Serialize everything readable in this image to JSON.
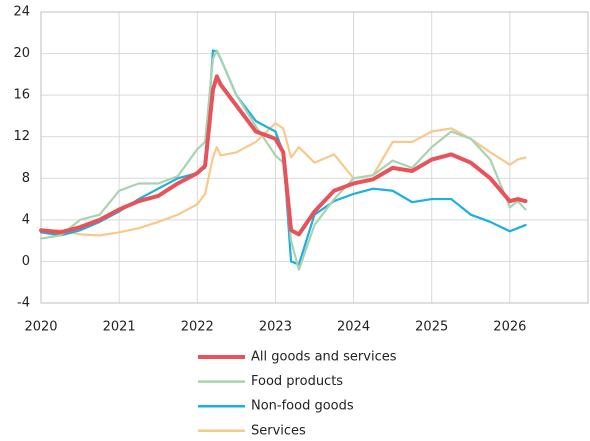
{
  "chart_data": {
    "type": "line",
    "x": [
      2020,
      2020.25,
      2020.5,
      2020.75,
      2021,
      2021.25,
      2021.5,
      2021.75,
      2022,
      2022.1,
      2022.2,
      2022.25,
      2022.3,
      2022.5,
      2022.75,
      2023,
      2023.1,
      2023.2,
      2023.3,
      2023.5,
      2023.75,
      2024,
      2024.25,
      2024.5,
      2024.75,
      2025,
      2025.25,
      2025.5,
      2025.75,
      2026,
      2026.1,
      2026.2
    ],
    "series": [
      {
        "name": "All goods and services",
        "color": "#e8525a",
        "values": [
          3.0,
          2.8,
          3.3,
          4.0,
          5.0,
          5.8,
          6.3,
          7.5,
          8.5,
          9.2,
          16.5,
          17.8,
          17.0,
          15.0,
          12.5,
          11.8,
          10.5,
          3.0,
          2.6,
          4.8,
          6.8,
          7.5,
          7.9,
          9.0,
          8.7,
          9.8,
          10.3,
          9.5,
          8.0,
          5.8,
          6.0,
          5.8
        ]
      },
      {
        "name": "Food products",
        "color": "#a9d3b0",
        "values": [
          2.2,
          2.5,
          4.0,
          4.5,
          6.8,
          7.5,
          7.5,
          8.2,
          10.8,
          11.5,
          19.5,
          20.3,
          19.5,
          16.0,
          13.0,
          10.2,
          9.5,
          2.0,
          -0.8,
          3.5,
          6.0,
          8.0,
          8.3,
          9.7,
          9.0,
          11.0,
          12.5,
          11.8,
          9.8,
          5.2,
          5.8,
          5.0
        ]
      },
      {
        "name": "Non-food goods",
        "color": "#1ab0e0",
        "values": [
          2.8,
          2.5,
          3.0,
          3.8,
          4.8,
          6.0,
          7.0,
          8.0,
          8.5,
          9.0,
          20.3,
          20.2,
          19.5,
          16.0,
          13.5,
          12.5,
          10.5,
          0.0,
          -0.3,
          4.5,
          5.8,
          6.5,
          7.0,
          6.8,
          5.7,
          6.0,
          6.0,
          4.5,
          3.8,
          2.9,
          3.2,
          3.5
        ]
      },
      {
        "name": "Services",
        "color": "#f8c98a",
        "values": [
          3.0,
          3.0,
          2.6,
          2.5,
          2.8,
          3.2,
          3.8,
          4.5,
          5.5,
          6.5,
          10.0,
          11.0,
          10.2,
          10.5,
          11.5,
          13.3,
          12.8,
          10.0,
          11.0,
          9.5,
          10.3,
          8.0,
          8.3,
          11.5,
          11.5,
          12.5,
          12.8,
          11.8,
          10.5,
          9.3,
          9.8,
          10.0
        ]
      }
    ],
    "xlim": [
      2020,
      2027
    ],
    "xticks": [
      2020,
      2021,
      2022,
      2023,
      2024,
      2025,
      2026
    ],
    "ylim": [
      -4,
      24
    ],
    "yticks": [
      -4,
      0,
      4,
      8,
      12,
      16,
      20,
      24
    ],
    "grid": true
  }
}
